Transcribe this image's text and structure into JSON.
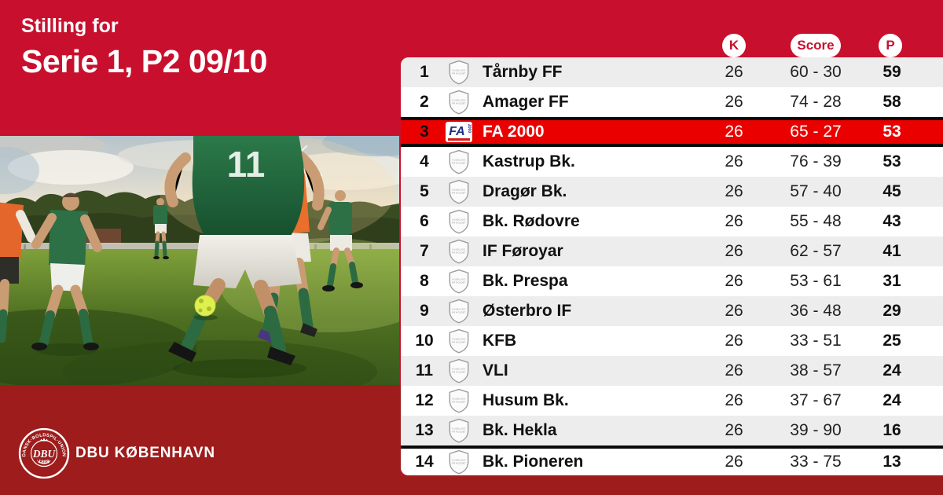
{
  "colors": {
    "dbu_red": "#C8102E",
    "dark_red": "#9E1C1C",
    "highlight_red": "#EB0000",
    "row_grey": "#EDEDED",
    "row_white": "#FFFFFF",
    "pill_bg": "#FFFFFF",
    "pill_text": "#C8102E",
    "text_dark": "#111111"
  },
  "header": {
    "eyebrow": "Stilling for",
    "title": "Serie 1, P2 09/10"
  },
  "columns": {
    "k": "K",
    "score": "Score",
    "p": "P"
  },
  "table": {
    "rows": [
      {
        "pos": "1",
        "team": "Tårnby FF",
        "k": "26",
        "score": "60 - 30",
        "p": "59",
        "highlight": false,
        "separator_before": false
      },
      {
        "pos": "2",
        "team": "Amager FF",
        "k": "26",
        "score": "74 - 28",
        "p": "58",
        "highlight": false,
        "separator_before": false
      },
      {
        "pos": "3",
        "team": "FA 2000",
        "k": "26",
        "score": "65 - 27",
        "p": "53",
        "highlight": true,
        "separator_before": false
      },
      {
        "pos": "4",
        "team": "Kastrup Bk.",
        "k": "26",
        "score": "76 - 39",
        "p": "53",
        "highlight": false,
        "separator_before": false
      },
      {
        "pos": "5",
        "team": "Dragør Bk.",
        "k": "26",
        "score": "57 - 40",
        "p": "45",
        "highlight": false,
        "separator_before": false
      },
      {
        "pos": "6",
        "team": "Bk. Rødovre",
        "k": "26",
        "score": "55 - 48",
        "p": "43",
        "highlight": false,
        "separator_before": false
      },
      {
        "pos": "7",
        "team": "IF Føroyar",
        "k": "26",
        "score": "62 - 57",
        "p": "41",
        "highlight": false,
        "separator_before": false
      },
      {
        "pos": "8",
        "team": "Bk. Prespa",
        "k": "26",
        "score": "53 - 61",
        "p": "31",
        "highlight": false,
        "separator_before": false
      },
      {
        "pos": "9",
        "team": "Østerbro IF",
        "k": "26",
        "score": "36 - 48",
        "p": "29",
        "highlight": false,
        "separator_before": false
      },
      {
        "pos": "10",
        "team": "KFB",
        "k": "26",
        "score": "33 - 51",
        "p": "25",
        "highlight": false,
        "separator_before": false
      },
      {
        "pos": "11",
        "team": "VLI",
        "k": "26",
        "score": "38 - 57",
        "p": "24",
        "highlight": false,
        "separator_before": false
      },
      {
        "pos": "12",
        "team": "Husum Bk.",
        "k": "26",
        "score": "37 - 67",
        "p": "24",
        "highlight": false,
        "separator_before": false
      },
      {
        "pos": "13",
        "team": "Bk. Hekla",
        "k": "26",
        "score": "39 - 90",
        "p": "16",
        "highlight": false,
        "separator_before": false
      },
      {
        "pos": "14",
        "team": "Bk. Pioneren",
        "k": "26",
        "score": "33 - 75",
        "p": "13",
        "highlight": false,
        "separator_before": true
      }
    ]
  },
  "club_placeholder": {
    "line1": "KLUBLOGO",
    "line2": "PÅ HOLDET"
  },
  "team_logo_fa2000": {
    "abbr": "FA",
    "year": "2000"
  },
  "photo": {
    "jersey_number": "11"
  },
  "footer": {
    "brand": "DBU KØBENHAVN",
    "seal_top": "DANSK·BOLDSPIL·UNION",
    "seal_monogram": "DBU",
    "seal_year": "·1889·"
  },
  "chart_data": {
    "type": "table",
    "title": "Serie 1, P2 09/10",
    "subtitle": "Stilling for",
    "columns": [
      "",
      "",
      "K",
      "Score",
      "P"
    ],
    "rows": [
      [
        1,
        "Tårnby FF",
        26,
        "60 - 30",
        59
      ],
      [
        2,
        "Amager FF",
        26,
        "74 - 28",
        58
      ],
      [
        3,
        "FA 2000",
        26,
        "65 - 27",
        53
      ],
      [
        4,
        "Kastrup Bk.",
        26,
        "76 - 39",
        53
      ],
      [
        5,
        "Dragør Bk.",
        26,
        "57 - 40",
        45
      ],
      [
        6,
        "Bk. Rødovre",
        26,
        "55 - 48",
        43
      ],
      [
        7,
        "IF Føroyar",
        26,
        "62 - 57",
        41
      ],
      [
        8,
        "Bk. Prespa",
        26,
        "53 - 61",
        31
      ],
      [
        9,
        "Østerbro IF",
        26,
        "36 - 48",
        29
      ],
      [
        10,
        "KFB",
        26,
        "33 - 51",
        25
      ],
      [
        11,
        "VLI",
        26,
        "38 - 57",
        24
      ],
      [
        12,
        "Husum Bk.",
        26,
        "37 - 67",
        24
      ],
      [
        13,
        "Bk. Hekla",
        26,
        "39 - 90",
        16
      ],
      [
        14,
        "Bk. Pioneren",
        26,
        "33 - 75",
        13
      ]
    ],
    "highlighted_row": "FA 2000"
  }
}
